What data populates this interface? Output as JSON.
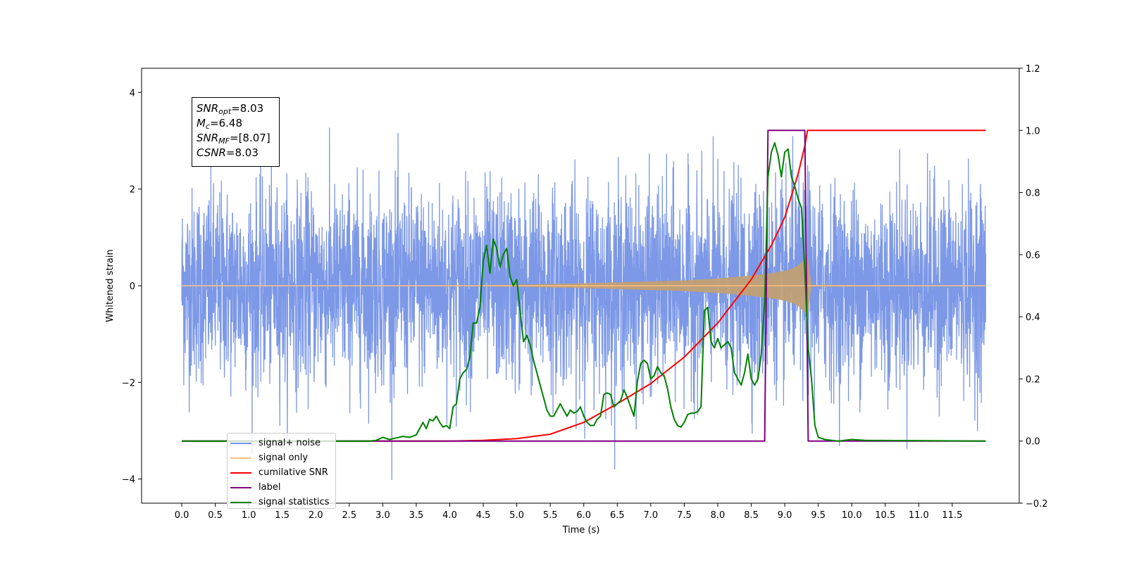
{
  "chart_data": {
    "type": "line",
    "xlabel": "Time (s)",
    "ylabel": "Whitened strain",
    "x_ticks": [
      "0.0",
      "0.5",
      "1.0",
      "1.5",
      "2.0",
      "2.5",
      "3.0",
      "3.5",
      "4.0",
      "4.5",
      "5.0",
      "5.5",
      "6.0",
      "6.5",
      "7.0",
      "7.5",
      "8.0",
      "8.5",
      "9.0",
      "9.5",
      "10.0",
      "10.5",
      "11.0",
      "11.5"
    ],
    "xlim": [
      -0.6,
      12.5
    ],
    "ylim_left": [
      -4.5,
      4.5
    ],
    "ylim_right": [
      -0.2,
      1.2
    ],
    "y_ticks_left": [
      "−4",
      "−2",
      "0",
      "2",
      "4"
    ],
    "y_ticks_right": [
      "−0.2",
      "0.0",
      "0.2",
      "0.4",
      "0.6",
      "0.8",
      "1.0",
      "1.2"
    ],
    "grid": false,
    "legend_position": "lower-left",
    "annotation": {
      "snr_opt": "8.03",
      "mc": "6.48",
      "snr_mf": "[8.07]",
      "csnr": "8.03"
    },
    "series": [
      {
        "name": "signal+ noise",
        "color": "#7592e6",
        "axis": "left",
        "noise_std": 1.0,
        "x_range": [
          0.0,
          12.0
        ]
      },
      {
        "name": "signal only",
        "color": "#ffbf7f",
        "axis": "left",
        "envelope": {
          "x": [
            0.0,
            4.0,
            5.0,
            6.0,
            6.5,
            7.0,
            7.5,
            8.0,
            8.5,
            8.8,
            9.0,
            9.1,
            9.2,
            9.3,
            9.34,
            9.4,
            12.0
          ],
          "amp": [
            0.0,
            0.01,
            0.02,
            0.05,
            0.07,
            0.09,
            0.11,
            0.15,
            0.21,
            0.26,
            0.31,
            0.35,
            0.42,
            0.55,
            0.65,
            0.02,
            0.0
          ]
        }
      },
      {
        "name": "cumilative SNR",
        "color": "#ff0000",
        "axis": "right",
        "x": [
          0.0,
          3.0,
          4.0,
          4.5,
          5.0,
          5.5,
          6.0,
          6.5,
          7.0,
          7.5,
          8.0,
          8.5,
          8.8,
          9.0,
          9.2,
          9.3,
          9.34,
          9.35,
          12.0
        ],
        "y": [
          0.0,
          0.0,
          0.0,
          0.002,
          0.008,
          0.022,
          0.06,
          0.12,
          0.185,
          0.27,
          0.38,
          0.52,
          0.63,
          0.72,
          0.86,
          0.95,
          1.0,
          1.0,
          1.0
        ]
      },
      {
        "name": "label",
        "color": "#800080",
        "axis": "right",
        "x": [
          0.0,
          8.7,
          8.75,
          9.3,
          9.35,
          12.0
        ],
        "y": [
          0.0,
          0.0,
          1.0,
          1.0,
          0.0,
          0.0
        ]
      },
      {
        "name": "signal statistics",
        "color": "#008000",
        "axis": "right",
        "x": [
          0.0,
          2.8,
          2.9,
          3.0,
          3.1,
          3.2,
          3.3,
          3.4,
          3.5,
          3.55,
          3.6,
          3.65,
          3.7,
          3.75,
          3.8,
          3.85,
          3.9,
          3.95,
          4.0,
          4.05,
          4.1,
          4.15,
          4.2,
          4.25,
          4.3,
          4.35,
          4.4,
          4.45,
          4.5,
          4.55,
          4.6,
          4.65,
          4.7,
          4.75,
          4.8,
          4.85,
          4.9,
          4.95,
          5.0,
          5.05,
          5.1,
          5.15,
          5.2,
          5.25,
          5.3,
          5.35,
          5.4,
          5.45,
          5.5,
          5.55,
          5.6,
          5.65,
          5.7,
          5.75,
          5.8,
          5.85,
          5.9,
          5.95,
          6.0,
          6.05,
          6.1,
          6.15,
          6.2,
          6.25,
          6.3,
          6.35,
          6.4,
          6.45,
          6.5,
          6.55,
          6.6,
          6.65,
          6.7,
          6.75,
          6.8,
          6.85,
          6.9,
          6.95,
          7.0,
          7.05,
          7.1,
          7.15,
          7.2,
          7.25,
          7.3,
          7.35,
          7.4,
          7.45,
          7.5,
          7.55,
          7.6,
          7.65,
          7.7,
          7.75,
          7.8,
          7.85,
          7.9,
          7.95,
          8.0,
          8.05,
          8.1,
          8.15,
          8.2,
          8.25,
          8.3,
          8.35,
          8.4,
          8.45,
          8.5,
          8.55,
          8.6,
          8.65,
          8.7,
          8.75,
          8.8,
          8.85,
          8.9,
          8.95,
          9.0,
          9.05,
          9.1,
          9.15,
          9.2,
          9.25,
          9.3,
          9.35,
          9.4,
          9.45,
          9.5,
          9.6,
          9.7,
          9.8,
          10.0,
          10.2,
          12.0
        ],
        "y": [
          0.0,
          0.0,
          0.002,
          0.012,
          0.005,
          0.01,
          0.015,
          0.012,
          0.02,
          0.04,
          0.06,
          0.04,
          0.07,
          0.065,
          0.08,
          0.06,
          0.045,
          0.05,
          0.04,
          0.11,
          0.12,
          0.2,
          0.22,
          0.23,
          0.27,
          0.38,
          0.38,
          0.43,
          0.58,
          0.63,
          0.54,
          0.65,
          0.62,
          0.56,
          0.6,
          0.62,
          0.53,
          0.5,
          0.52,
          0.42,
          0.32,
          0.34,
          0.31,
          0.26,
          0.22,
          0.18,
          0.14,
          0.1,
          0.08,
          0.08,
          0.1,
          0.12,
          0.1,
          0.08,
          0.1,
          0.09,
          0.095,
          0.11,
          0.08,
          0.06,
          0.05,
          0.05,
          0.07,
          0.08,
          0.15,
          0.155,
          0.15,
          0.11,
          0.12,
          0.13,
          0.165,
          0.14,
          0.11,
          0.08,
          0.19,
          0.25,
          0.26,
          0.25,
          0.2,
          0.21,
          0.24,
          0.22,
          0.21,
          0.17,
          0.11,
          0.07,
          0.05,
          0.045,
          0.06,
          0.085,
          0.09,
          0.09,
          0.095,
          0.11,
          0.42,
          0.43,
          0.32,
          0.3,
          0.33,
          0.3,
          0.31,
          0.32,
          0.3,
          0.22,
          0.2,
          0.18,
          0.22,
          0.28,
          0.2,
          0.18,
          0.2,
          0.28,
          0.45,
          0.85,
          0.93,
          0.96,
          0.92,
          0.85,
          0.93,
          0.94,
          0.85,
          0.82,
          0.78,
          0.75,
          0.55,
          0.3,
          0.2,
          0.05,
          0.012,
          0.005,
          0.002,
          0.0,
          0.005,
          0.002,
          0.0
        ]
      }
    ]
  }
}
